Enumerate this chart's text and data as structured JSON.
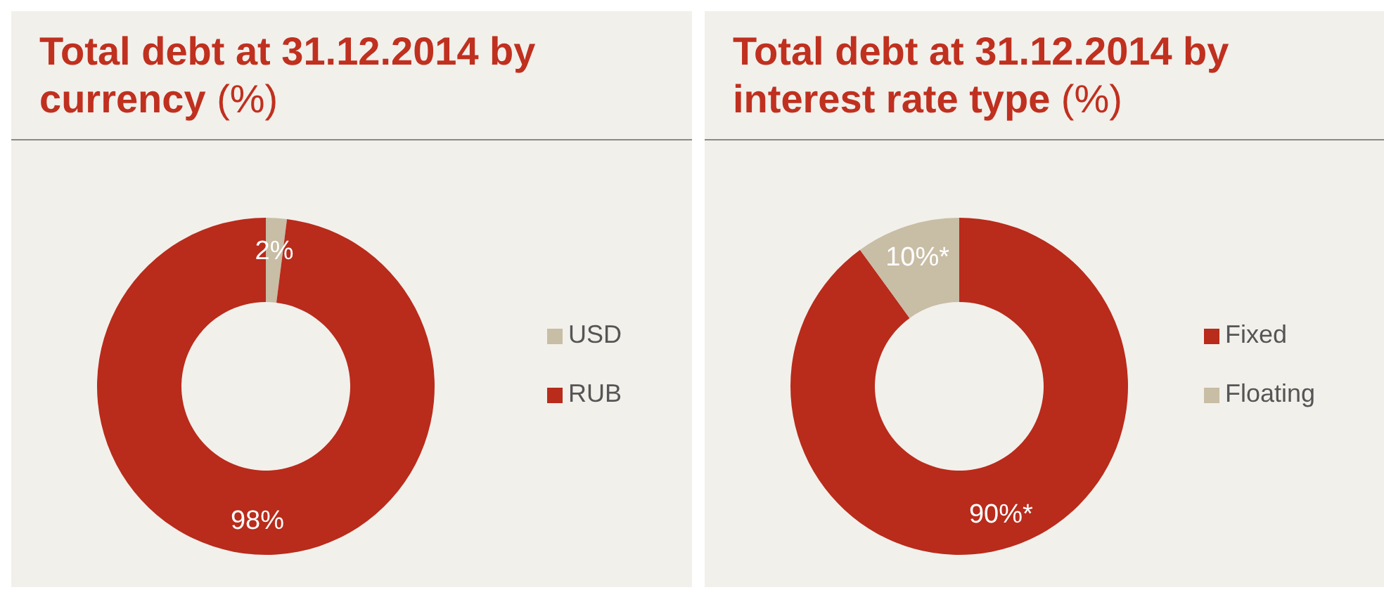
{
  "chart_data": [
    {
      "type": "donut",
      "title": "Total debt at 31.12.2014 by currency (%)",
      "categories": [
        "USD",
        "RUB"
      ],
      "values": [
        2,
        98
      ],
      "colors": [
        "#c8bda5",
        "#b92b1b"
      ],
      "value_labels": [
        "2%",
        "98%"
      ],
      "legend": "right"
    },
    {
      "type": "donut",
      "title": "Total debt at 31.12.2014 by interest rate type (%)",
      "categories": [
        "Fixed",
        "Floating"
      ],
      "values": [
        90,
        10
      ],
      "colors": [
        "#b92b1b",
        "#c8bda5"
      ],
      "value_labels": [
        "90%*",
        "10%*"
      ],
      "legend": "right"
    }
  ]
}
